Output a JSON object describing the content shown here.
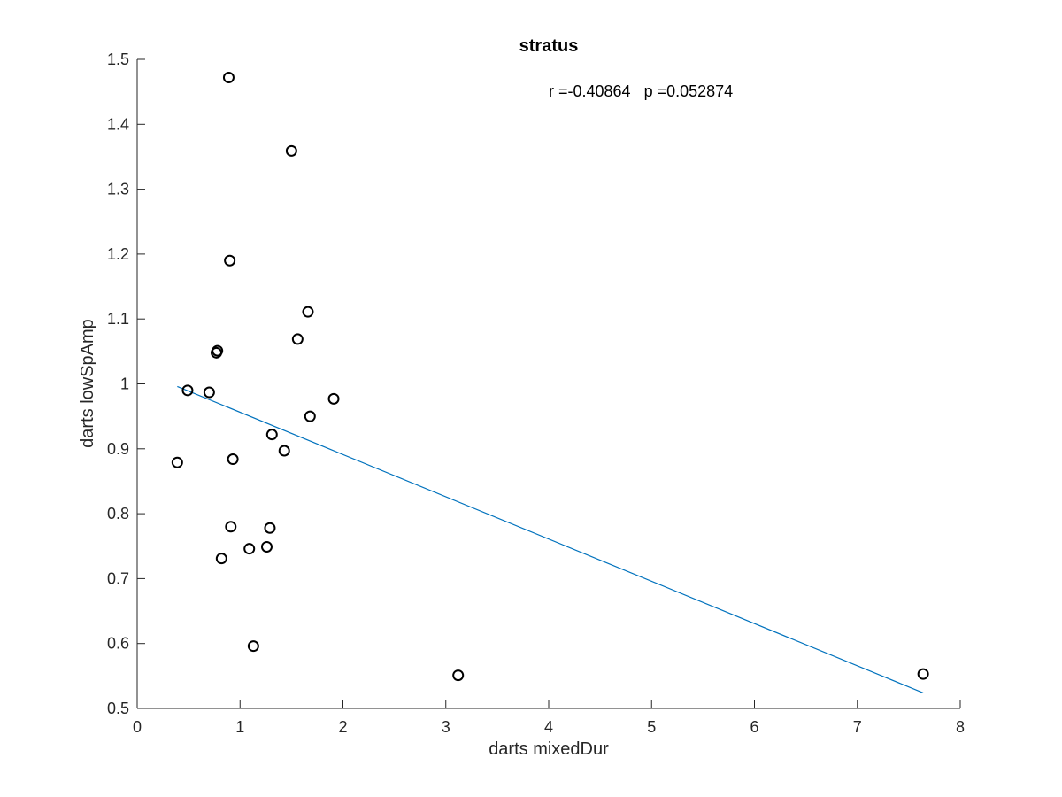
{
  "chart_data": {
    "type": "scatter",
    "title": "stratus",
    "xlabel": "darts mixedDur",
    "ylabel": "darts lowSpAmp",
    "xlim": [
      0,
      8
    ],
    "ylim": [
      0.5,
      1.5
    ],
    "xticks": [
      "0",
      "1",
      "2",
      "3",
      "4",
      "5",
      "6",
      "7",
      "8"
    ],
    "yticks": [
      "0.5",
      "0.6",
      "0.7",
      "0.8",
      "0.9",
      "1",
      "1.1",
      "1.2",
      "1.3",
      "1.4",
      "1.5"
    ],
    "annotation": "r =-0.40864   p =0.052874",
    "grid": false,
    "marker_color": "#000000",
    "fit_color": "#0072BD",
    "points": [
      {
        "x": 0.89,
        "y": 1.472
      },
      {
        "x": 1.5,
        "y": 1.359
      },
      {
        "x": 0.9,
        "y": 1.19
      },
      {
        "x": 1.66,
        "y": 1.111
      },
      {
        "x": 1.56,
        "y": 1.069
      },
      {
        "x": 0.78,
        "y": 1.051
      },
      {
        "x": 0.77,
        "y": 1.048
      },
      {
        "x": 0.49,
        "y": 0.99
      },
      {
        "x": 0.7,
        "y": 0.987
      },
      {
        "x": 1.91,
        "y": 0.977
      },
      {
        "x": 1.68,
        "y": 0.95
      },
      {
        "x": 1.31,
        "y": 0.922
      },
      {
        "x": 1.43,
        "y": 0.897
      },
      {
        "x": 0.93,
        "y": 0.884
      },
      {
        "x": 0.39,
        "y": 0.879
      },
      {
        "x": 0.91,
        "y": 0.78
      },
      {
        "x": 1.29,
        "y": 0.778
      },
      {
        "x": 1.09,
        "y": 0.746
      },
      {
        "x": 1.26,
        "y": 0.749
      },
      {
        "x": 0.82,
        "y": 0.731
      },
      {
        "x": 1.13,
        "y": 0.596
      },
      {
        "x": 3.12,
        "y": 0.551
      },
      {
        "x": 7.64,
        "y": 0.553
      }
    ],
    "fit_line": [
      {
        "x": 0.39,
        "y": 0.996
      },
      {
        "x": 7.64,
        "y": 0.524
      }
    ]
  }
}
